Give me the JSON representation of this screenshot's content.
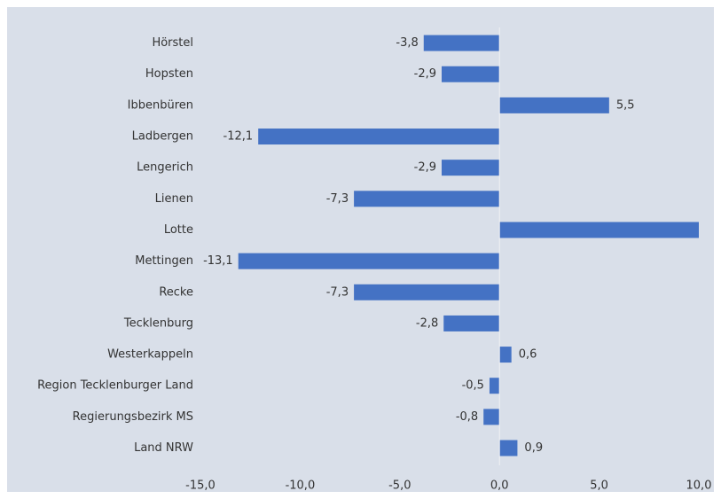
{
  "chart_data": {
    "type": "bar",
    "orientation": "horizontal",
    "categories": [
      "Hörstel",
      "Hopsten",
      "Ibbenbüren",
      "Ladbergen",
      "Lengerich",
      "Lienen",
      "Lotte",
      "Mettingen",
      "Recke",
      "Tecklenburg",
      "Westerkappeln",
      "Region Tecklenburger Land",
      "Regierungsbezirk MS",
      "Land NRW"
    ],
    "values": [
      -3.8,
      -2.9,
      5.5,
      -12.1,
      -2.9,
      -7.3,
      10,
      -13.1,
      -7.3,
      -2.8,
      0.6,
      -0.5,
      -0.8,
      0.9
    ],
    "value_labels": [
      "-3,8",
      "-2,9",
      "5,5",
      "-12,1",
      "-2,9",
      "-7,3",
      null,
      "-13,1",
      "-7,3",
      "-2,8",
      "0,6",
      "-0,5",
      "-0,8",
      "0,9"
    ],
    "color": "#4472c4",
    "xlim": [
      -15,
      10
    ],
    "xticks": [
      {
        "value": -15,
        "label": "-15,0"
      },
      {
        "value": -10,
        "label": "-10,0"
      },
      {
        "value": -5,
        "label": "-5,0"
      },
      {
        "value": 0,
        "label": "0,0"
      },
      {
        "value": 5,
        "label": "5,0"
      },
      {
        "value": 10,
        "label": "10,0"
      }
    ],
    "grid": false
  }
}
